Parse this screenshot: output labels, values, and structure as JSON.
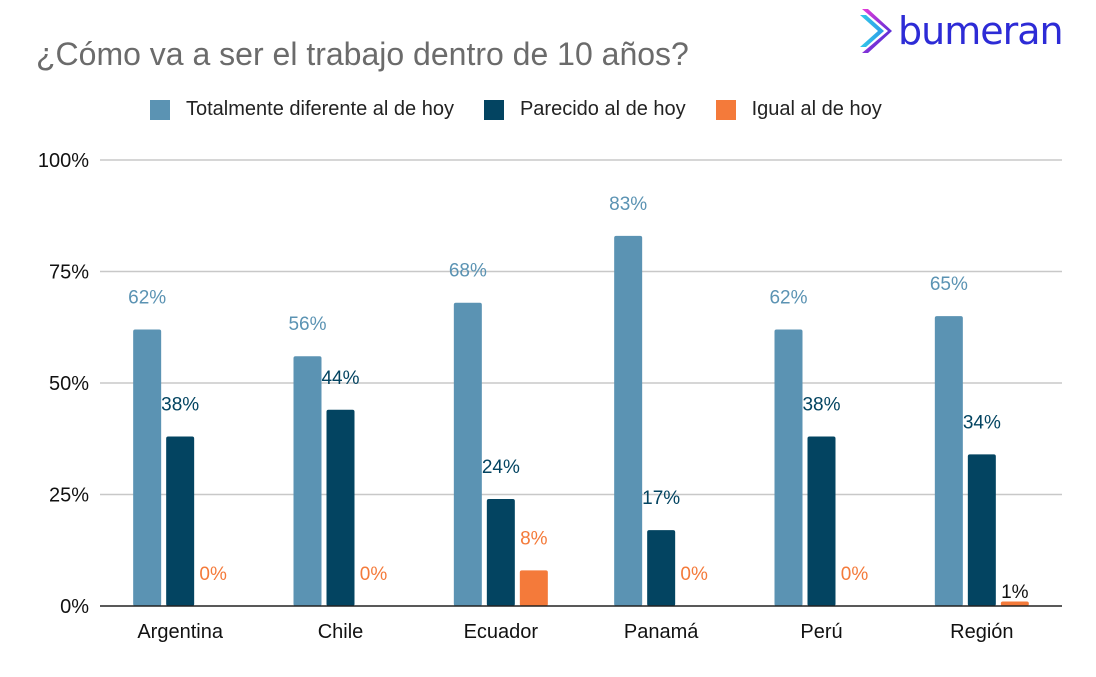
{
  "title": "¿Cómo va a ser el trabajo dentro de 10 años?",
  "logo": {
    "text": "bumeran"
  },
  "chart_data": {
    "type": "bar",
    "title": "¿Cómo va a ser el trabajo dentro de 10 años?",
    "categories": [
      "Argentina",
      "Chile",
      "Ecuador",
      "Panamá",
      "Perú",
      "Región"
    ],
    "series": [
      {
        "name": "Totalmente diferente al de hoy",
        "color": "#5b93b3",
        "label_color": "#5b93b3",
        "values": [
          62,
          56,
          68,
          83,
          62,
          65
        ]
      },
      {
        "name": "Parecido al de hoy",
        "color": "#034461",
        "label_color": "#034461",
        "values": [
          38,
          44,
          24,
          17,
          38,
          34
        ]
      },
      {
        "name": "Igual al de hoy",
        "color": "#f47a3a",
        "label_color": "#f47a3a",
        "values": [
          0,
          0,
          8,
          0,
          0,
          1
        ]
      }
    ],
    "data_labels": [
      [
        "62%",
        "56%",
        "68%",
        "83%",
        "62%",
        "65%"
      ],
      [
        "38%",
        "44%",
        "24%",
        "17%",
        "38%",
        "34%"
      ],
      [
        "0%",
        "0%",
        "8%",
        "0%",
        "0%",
        "1%"
      ]
    ],
    "yticks": [
      "0%",
      "25%",
      "50%",
      "75%",
      "100%"
    ],
    "ytick_values": [
      0,
      25,
      50,
      75,
      100
    ],
    "ylim": [
      0,
      100
    ],
    "xlabel": "",
    "ylabel": "",
    "grid": true,
    "legend_position": "top"
  }
}
